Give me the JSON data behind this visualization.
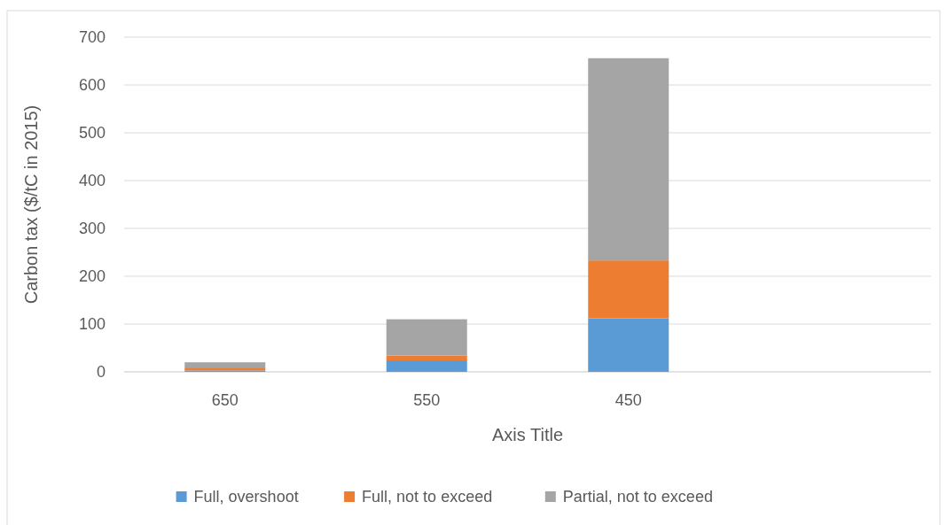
{
  "chart_data": {
    "type": "bar",
    "stacked": true,
    "xlabel": "Axis Title",
    "ylabel": "Carbon tax ($/tC in 2015)",
    "categories": [
      "650",
      "550",
      "450",
      null
    ],
    "series": [
      {
        "name": "Full, overshoot",
        "color": "#5b9bd5",
        "values": [
          3,
          24,
          112,
          null
        ]
      },
      {
        "name": "Full, not to exceed",
        "color": "#ed7d31",
        "values": [
          6,
          10,
          121,
          null
        ]
      },
      {
        "name": "Partial, not to exceed",
        "color": "#a5a5a5",
        "values": [
          11,
          76,
          423,
          null
        ]
      }
    ],
    "ylim": [
      0,
      700
    ],
    "yticks": [
      0,
      100,
      200,
      300,
      400,
      500,
      600,
      700
    ],
    "grid": "y",
    "legend": "bottom"
  }
}
